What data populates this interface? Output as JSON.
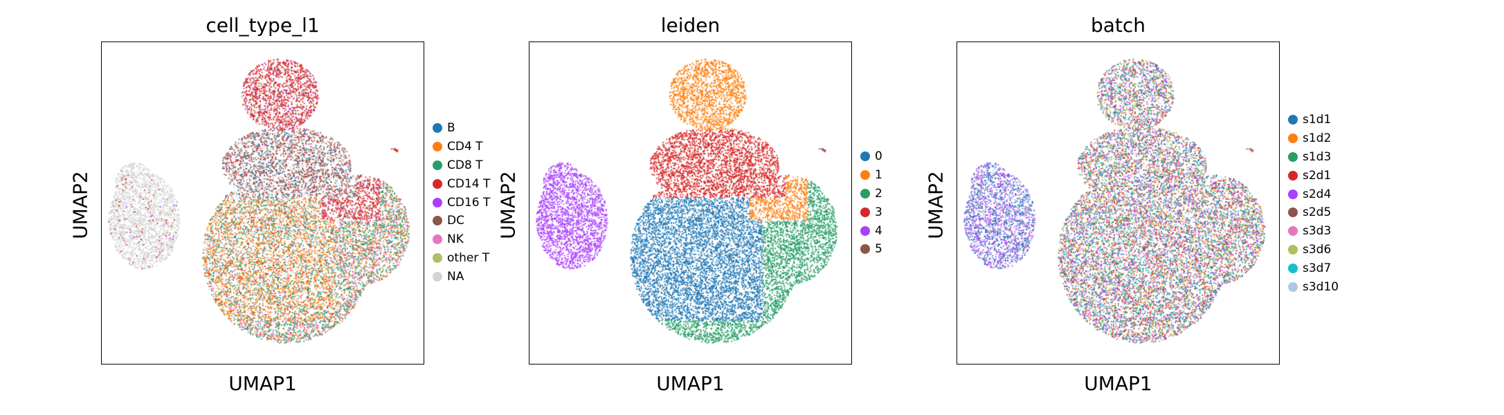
{
  "chart_data": [
    {
      "type": "scatter",
      "title": "cell_type_l1",
      "xlabel": "UMAP1",
      "ylabel": "UMAP2",
      "grid": false,
      "legend_position": "right",
      "series": [
        {
          "name": "B",
          "color": "#1f77b4"
        },
        {
          "name": "CD4 T",
          "color": "#ff7f0e"
        },
        {
          "name": "CD8 T",
          "color": "#279e68"
        },
        {
          "name": "CD14 T",
          "color": "#d62728"
        },
        {
          "name": "CD16 T",
          "color": "#aa40fc"
        },
        {
          "name": "DC",
          "color": "#8c564b"
        },
        {
          "name": "NK",
          "color": "#e377c2"
        },
        {
          "name": "other T",
          "color": "#b5bd61"
        },
        {
          "name": "NA",
          "color": "#d3d3d3"
        }
      ]
    },
    {
      "type": "scatter",
      "title": "leiden",
      "xlabel": "UMAP1",
      "ylabel": "UMAP2",
      "grid": false,
      "legend_position": "right",
      "series": [
        {
          "name": "0",
          "color": "#1f77b4"
        },
        {
          "name": "1",
          "color": "#ff7f0e"
        },
        {
          "name": "2",
          "color": "#279e68"
        },
        {
          "name": "3",
          "color": "#d62728"
        },
        {
          "name": "4",
          "color": "#aa40fc"
        },
        {
          "name": "5",
          "color": "#8c564b"
        }
      ]
    },
    {
      "type": "scatter",
      "title": "batch",
      "xlabel": "UMAP1",
      "ylabel": "UMAP2",
      "grid": false,
      "legend_position": "right",
      "series": [
        {
          "name": "s1d1",
          "color": "#1f77b4"
        },
        {
          "name": "s1d2",
          "color": "#ff7f0e"
        },
        {
          "name": "s1d3",
          "color": "#279e68"
        },
        {
          "name": "s2d1",
          "color": "#d62728"
        },
        {
          "name": "s2d4",
          "color": "#aa40fc"
        },
        {
          "name": "s2d5",
          "color": "#8c564b"
        },
        {
          "name": "s3d3",
          "color": "#e377c2"
        },
        {
          "name": "s3d6",
          "color": "#b5bd61"
        },
        {
          "name": "s3d7",
          "color": "#17becf"
        },
        {
          "name": "s3d10",
          "color": "#aec7e8"
        }
      ]
    }
  ]
}
